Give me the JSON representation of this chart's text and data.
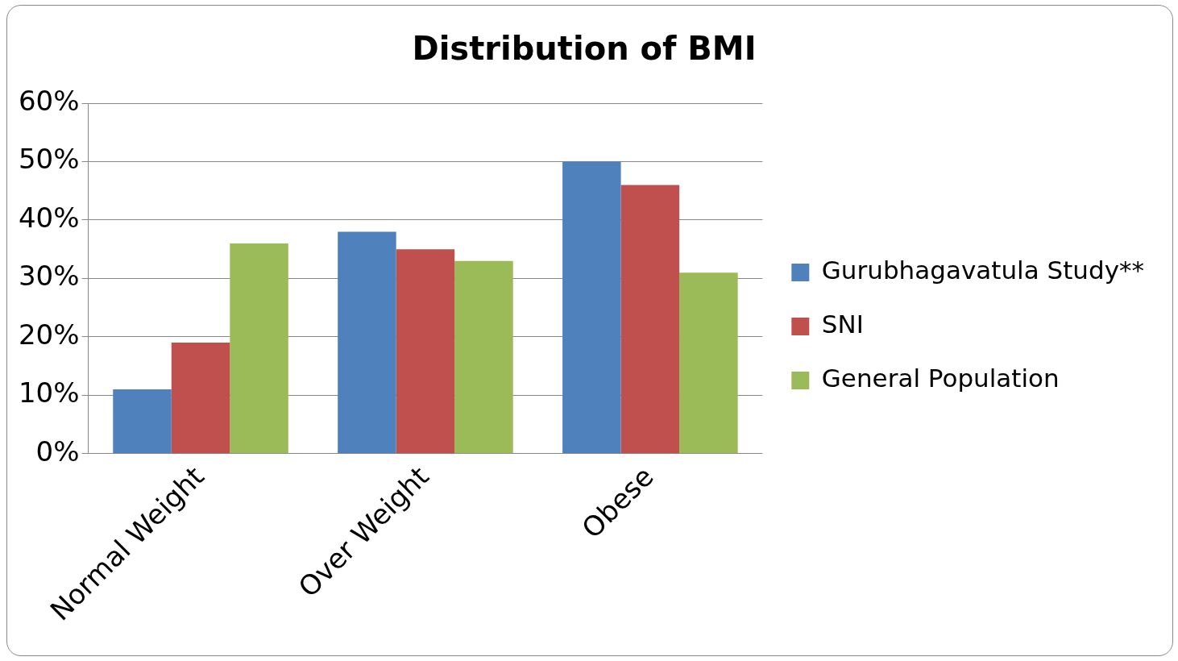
{
  "chart_data": {
    "type": "bar",
    "title": "Distribution of BMI",
    "categories": [
      "Normal Weight",
      "Over Weight",
      "Obese"
    ],
    "series": [
      {
        "name": "Gurubhagavatula Study**",
        "color": "#4f81bd",
        "values": [
          11,
          38,
          50
        ]
      },
      {
        "name": "SNI",
        "color": "#c0504d",
        "values": [
          19,
          35,
          46
        ]
      },
      {
        "name": "General Population",
        "color": "#9bbb59",
        "values": [
          36,
          33,
          31
        ]
      }
    ],
    "ylim": [
      0,
      60
    ],
    "yticks": [
      {
        "value": 0,
        "label": "0%"
      },
      {
        "value": 10,
        "label": "10%"
      },
      {
        "value": 20,
        "label": "20%"
      },
      {
        "value": 30,
        "label": "30%"
      },
      {
        "value": 40,
        "label": "40%"
      },
      {
        "value": 50,
        "label": "50%"
      },
      {
        "value": 60,
        "label": "60%"
      }
    ],
    "grid": "y",
    "legend": "right"
  }
}
